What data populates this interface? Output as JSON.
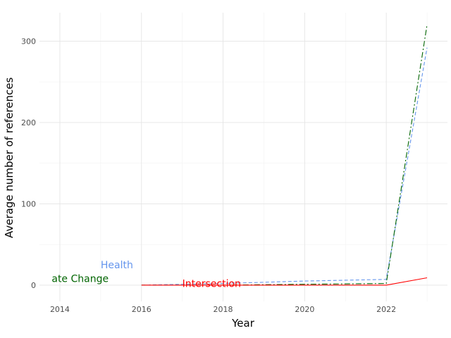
{
  "chart_data": {
    "type": "line",
    "title": "",
    "xlabel": "Year",
    "ylabel": "Average number of references",
    "xlim": [
      2013.5,
      2023.5
    ],
    "ylim": [
      -20,
      335
    ],
    "x_ticks": [
      "2014",
      "2016",
      "2018",
      "2020",
      "2022"
    ],
    "y_ticks": [
      "0",
      "100",
      "200",
      "300"
    ],
    "grid": true,
    "legend": "none",
    "series": [
      {
        "label": "Health",
        "color": "#6495ED",
        "dash": "dashed",
        "x": [
          2016,
          2018,
          2020,
          2022,
          2023
        ],
        "y": [
          0,
          2,
          5,
          7,
          292
        ],
        "label_at": [
          2015,
          25
        ]
      },
      {
        "label": "ate Change",
        "color": "#006400",
        "dash": "dashdot",
        "x": [
          2016,
          2018,
          2020,
          2022,
          2023
        ],
        "y": [
          0,
          0,
          1,
          2,
          320
        ],
        "label_at": [
          2013.8,
          8
        ]
      },
      {
        "label": "Intersection",
        "color": "#FF0000",
        "dash": "solid",
        "x": [
          2016,
          2018,
          2020,
          2022,
          2023
        ],
        "y": [
          0,
          0,
          0,
          0,
          9
        ],
        "label_at": [
          2017,
          2
        ]
      }
    ]
  }
}
